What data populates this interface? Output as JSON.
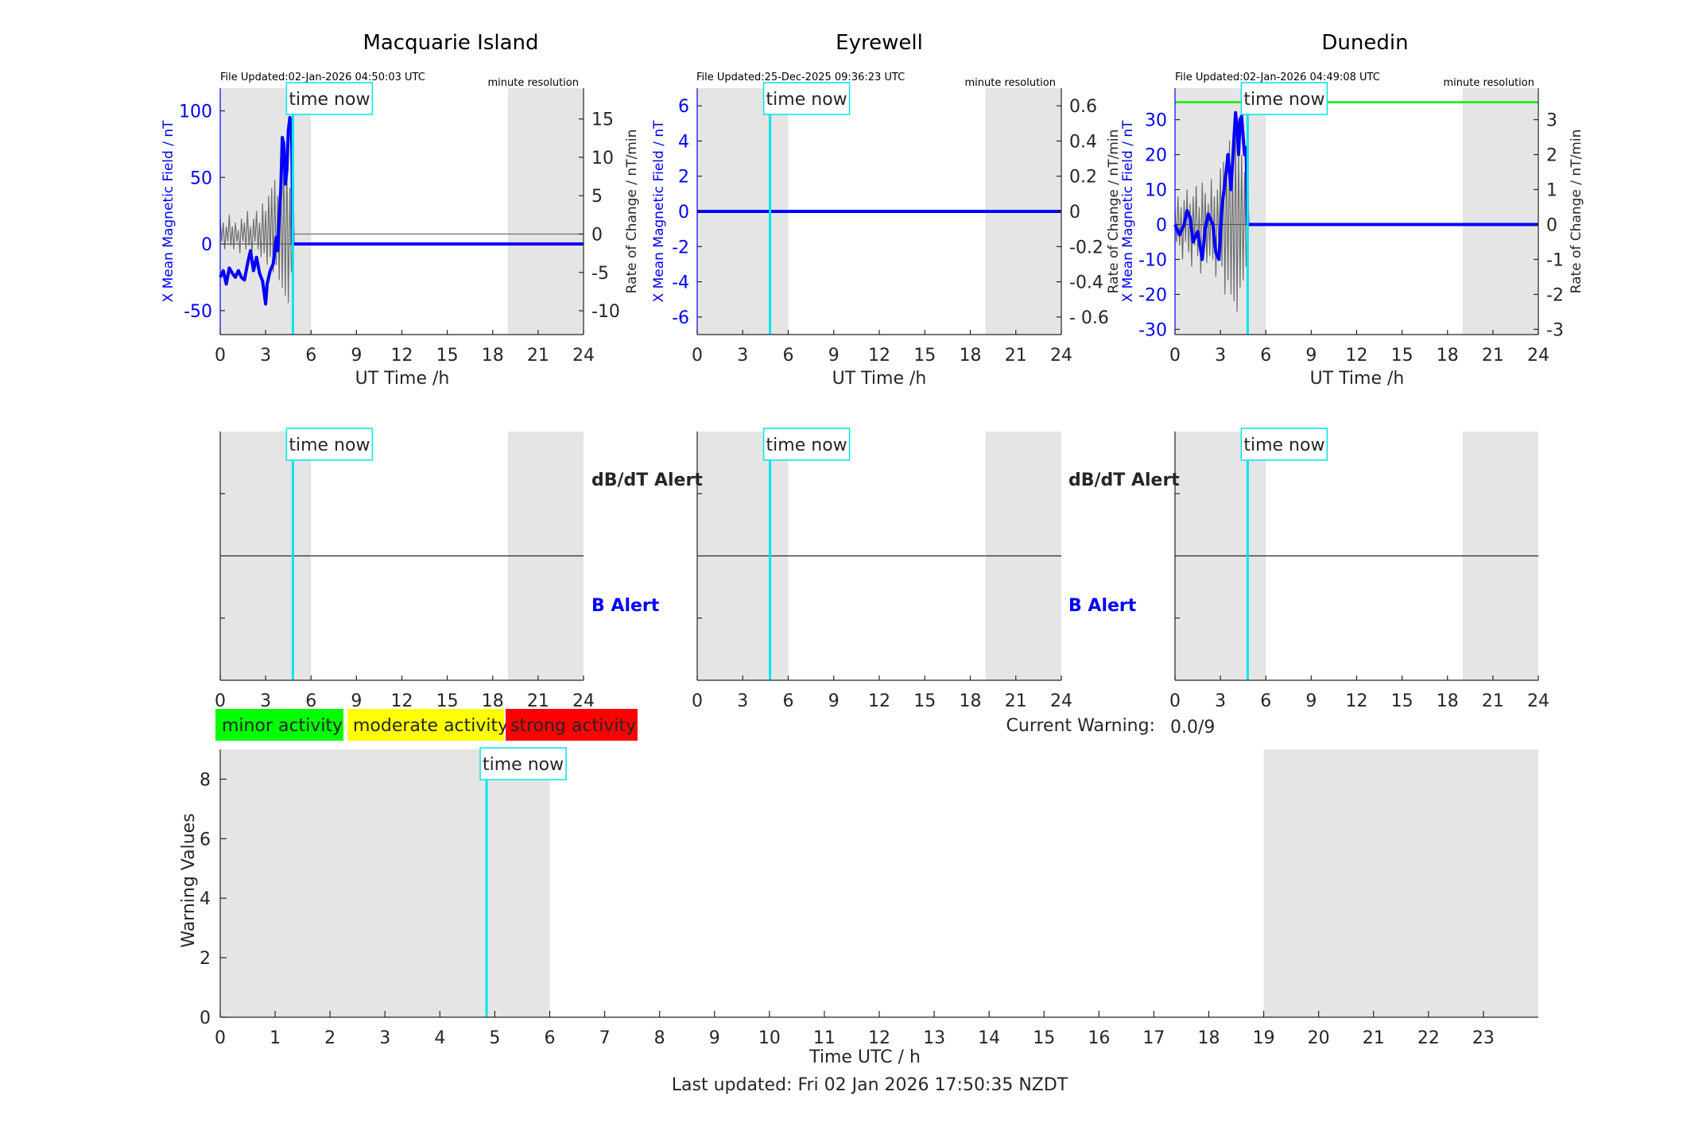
{
  "colors": {
    "shade": "#e5e5e5",
    "x_field": "#0000ff",
    "rate": "#6e6e6e",
    "time_now": "#00e5ee",
    "threshold": "#00ee00",
    "minor": "#00ff00",
    "moderate": "#ffff00",
    "strong": "#ff0000"
  },
  "common": {
    "time_now_label": "time now",
    "resolution_label": "minute resolution",
    "x_axis_label": "UT Time /h",
    "y_left_label": "X Mean Magnetic Field / nT",
    "y_right_label": "Rate of Change / nT/min",
    "dbdt_alert_label": "dB/dT Alert",
    "b_alert_label": "B Alert"
  },
  "legend": {
    "minor": "minor activity",
    "moderate": "moderate activity",
    "strong": "strong activity"
  },
  "current_warning": {
    "label": "Current Warning:",
    "value": "0.0/9"
  },
  "footer": {
    "last_updated": "Last updated: Fri 02 Jan 2026 17:50:35 NZDT"
  },
  "chart_data": [
    {
      "type": "line",
      "title": "Macquarie Island",
      "file_updated": "File Updated:02-Jan-2026 04:50:03 UTC",
      "xlabel": "UT Time /h",
      "xlim": [
        0,
        24
      ],
      "xticks": [
        "0",
        "3",
        "6",
        "9",
        "12",
        "15",
        "18",
        "21",
        "24"
      ],
      "ylim_left": [
        -68,
        117
      ],
      "yticks_left": [
        "-50",
        "0",
        "50",
        "100"
      ],
      "ylim_right": [
        -13.1,
        19
      ],
      "yticks_right": [
        "-10",
        "-5",
        "0",
        "5",
        "10",
        "15"
      ],
      "time_now": 4.8,
      "shaded": [
        [
          0,
          6
        ],
        [
          19,
          24
        ]
      ],
      "threshold": null,
      "series": [
        {
          "x": [
            0,
            0.2,
            0.4,
            0.6,
            0.8,
            1.0,
            1.2,
            1.4,
            1.6,
            1.8,
            2.0,
            2.2,
            2.4,
            2.6,
            2.8,
            3.0,
            3.1,
            3.3,
            3.5,
            3.7,
            3.8,
            3.9,
            4.0,
            4.1,
            4.2,
            4.3,
            4.4,
            4.5,
            4.6,
            4.7,
            4.75,
            4.8,
            5,
            8,
            12,
            16,
            20,
            24
          ],
          "y": [
            -25,
            -20,
            -30,
            -18,
            -22,
            -25,
            -20,
            -25,
            -27,
            -15,
            -5,
            -20,
            -10,
            -22,
            -28,
            -45,
            -30,
            -20,
            -15,
            5,
            -5,
            20,
            40,
            80,
            75,
            45,
            55,
            85,
            95,
            90,
            60,
            0,
            0,
            0,
            0,
            0,
            0,
            0
          ]
        },
        {
          "x": [
            0,
            0.1,
            0.2,
            0.3,
            0.4,
            0.5,
            0.6,
            0.7,
            0.8,
            0.9,
            1.0,
            1.1,
            1.2,
            1.3,
            1.4,
            1.5,
            1.6,
            1.7,
            1.8,
            1.9,
            2.0,
            2.1,
            2.2,
            2.3,
            2.4,
            2.5,
            2.6,
            2.7,
            2.8,
            2.9,
            3.0,
            3.1,
            3.2,
            3.3,
            3.4,
            3.5,
            3.6,
            3.7,
            3.8,
            3.9,
            4.0,
            4.1,
            4.2,
            4.3,
            4.4,
            4.5,
            4.6,
            4.7,
            4.8,
            5,
            8,
            12,
            16,
            20,
            24
          ],
          "y": [
            2,
            -1,
            1.5,
            -2,
            1,
            -1,
            2.5,
            -1.5,
            1,
            -2,
            1.5,
            -1,
            0.5,
            -2.5,
            2,
            -1,
            1.5,
            -2,
            3,
            -1.5,
            1,
            -2.5,
            2,
            -1,
            3,
            -2,
            1.5,
            -3,
            4,
            -2.5,
            3,
            -4,
            5,
            -3,
            6,
            -5,
            7,
            -4,
            5,
            -6,
            8,
            -7,
            9,
            -8,
            10,
            -9,
            6,
            -5,
            0,
            0,
            0,
            0,
            0,
            0,
            0
          ]
        }
      ]
    },
    {
      "type": "line",
      "title": "Eyrewell",
      "file_updated": "File Updated:25-Dec-2025 09:36:23 UTC",
      "xlabel": "UT Time /h",
      "xlim": [
        0,
        24
      ],
      "xticks": [
        "0",
        "3",
        "6",
        "9",
        "12",
        "15",
        "18",
        "21",
        "24"
      ],
      "ylim_left": [
        -7,
        7
      ],
      "yticks_left": [
        "-6",
        "-4",
        "-2",
        "0",
        "2",
        "4",
        "6"
      ],
      "ylim_right": [
        -0.7,
        0.7
      ],
      "yticks_right": [
        "- 0.6",
        "-0.4",
        "-0.2",
        "0",
        "0.2",
        "0.4",
        "0.6"
      ],
      "time_now": 4.8,
      "shaded": [
        [
          0,
          6
        ],
        [
          19,
          24
        ]
      ],
      "threshold": null,
      "series": [
        {
          "x": [
            0,
            24
          ],
          "y": [
            0,
            0
          ]
        },
        {
          "x": [
            0,
            24
          ],
          "y": [
            0,
            0
          ]
        }
      ]
    },
    {
      "type": "line",
      "title": "Dunedin",
      "file_updated": "File Updated:02-Jan-2026 04:49:08 UTC",
      "xlabel": "UT Time /h",
      "xlim": [
        0,
        24
      ],
      "xticks": [
        "0",
        "3",
        "6",
        "9",
        "12",
        "15",
        "18",
        "21",
        "24"
      ],
      "ylim_left": [
        -31.5,
        39
      ],
      "yticks_left": [
        "-30",
        "-20",
        "-10",
        "0",
        "10",
        "20",
        "30"
      ],
      "ylim_right": [
        -3.15,
        3.9
      ],
      "yticks_right": [
        "-3",
        "-2",
        "-1",
        "0",
        "1",
        "2",
        "3"
      ],
      "time_now": 4.8,
      "shaded": [
        [
          0,
          6
        ],
        [
          19,
          24
        ]
      ],
      "threshold": 35,
      "series": [
        {
          "x": [
            0,
            0.3,
            0.6,
            0.8,
            1.0,
            1.2,
            1.5,
            1.8,
            2.0,
            2.2,
            2.5,
            2.7,
            2.9,
            3.1,
            3.3,
            3.5,
            3.7,
            3.9,
            4.0,
            4.1,
            4.2,
            4.3,
            4.4,
            4.5,
            4.6,
            4.7,
            4.8,
            5,
            8,
            12,
            16,
            20,
            24
          ],
          "y": [
            0,
            -3,
            0,
            4,
            2,
            -5,
            -2,
            -10,
            -1,
            3,
            0,
            -8,
            -10,
            5,
            12,
            20,
            10,
            25,
            32,
            28,
            20,
            30,
            31,
            25,
            20,
            22,
            0,
            0,
            0,
            0,
            0,
            0,
            0
          ]
        },
        {
          "x": [
            0,
            0.1,
            0.2,
            0.3,
            0.4,
            0.5,
            0.6,
            0.7,
            0.8,
            0.9,
            1.0,
            1.1,
            1.2,
            1.3,
            1.4,
            1.5,
            1.6,
            1.7,
            1.8,
            1.9,
            2.0,
            2.1,
            2.2,
            2.3,
            2.4,
            2.5,
            2.6,
            2.7,
            2.8,
            2.9,
            3.0,
            3.1,
            3.2,
            3.3,
            3.4,
            3.5,
            3.6,
            3.7,
            3.8,
            3.9,
            4.0,
            4.1,
            4.2,
            4.3,
            4.4,
            4.5,
            4.6,
            4.7,
            4.8,
            5,
            8,
            12,
            16,
            20,
            24
          ],
          "y": [
            0.5,
            -0.5,
            0.8,
            -0.6,
            0.5,
            -1,
            0.7,
            -0.5,
            1,
            -0.8,
            0.6,
            -1.2,
            0.8,
            -0.6,
            1.1,
            -0.9,
            0.5,
            -1.4,
            1.2,
            -0.7,
            0.9,
            -1.1,
            0.6,
            -0.9,
            1.3,
            -1,
            0.8,
            -1.5,
            1,
            -0.8,
            1.6,
            -1.2,
            1.8,
            -2,
            2,
            -1.6,
            2.4,
            -2,
            1.8,
            -2.2,
            2.6,
            -2.5,
            2.2,
            -1.8,
            2,
            -1.6,
            1.5,
            -1.2,
            0,
            0,
            0,
            0,
            0,
            0,
            0
          ]
        }
      ]
    },
    {
      "type": "line",
      "title": "",
      "xlabel": "Time UTC / h",
      "ylabel": "Warning Values",
      "xlim": [
        0,
        24
      ],
      "xticks": [
        "0",
        "1",
        "2",
        "3",
        "4",
        "5",
        "6",
        "7",
        "8",
        "9",
        "10",
        "11",
        "12",
        "13",
        "14",
        "15",
        "16",
        "17",
        "18",
        "19",
        "20",
        "21",
        "22",
        "23"
      ],
      "ylim": [
        0,
        9
      ],
      "yticks": [
        "0",
        "2",
        "4",
        "6",
        "8"
      ],
      "time_now": 4.85,
      "shaded": [
        [
          0,
          6
        ],
        [
          19,
          24
        ]
      ],
      "series": []
    }
  ]
}
